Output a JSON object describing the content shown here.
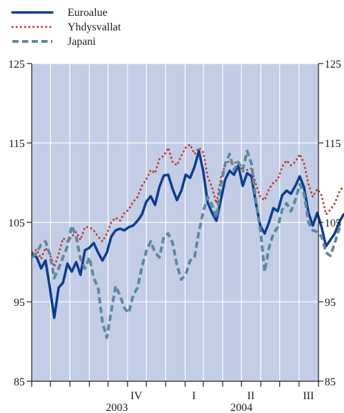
{
  "chart_data": {
    "type": "line",
    "title": "",
    "xlabel": "",
    "ylabel": "",
    "ylim": [
      85,
      125
    ],
    "yticks": [
      85,
      95,
      105,
      115,
      125
    ],
    "ytick_labels": [
      "85",
      "95",
      "105",
      "115",
      "125"
    ],
    "y_axis_both_sides": true,
    "grid": true,
    "legend_placement": "top-left",
    "x_start": "2003-06",
    "x_end": "2004-09",
    "x_month_ticks": [
      "2003-06",
      "2003-07",
      "2003-08",
      "2003-09",
      "2003-10",
      "2003-11",
      "2003-12",
      "2004-01",
      "2004-02",
      "2004-03",
      "2004-04",
      "2004-05",
      "2004-06",
      "2004-07",
      "2004-08",
      "2004-09"
    ],
    "x_quarter_labels": [
      {
        "text": "IV",
        "center": "2003-11-15"
      },
      {
        "text": "I",
        "center": "2004-02-15"
      },
      {
        "text": "II",
        "center": "2004-05-16"
      },
      {
        "text": "III",
        "center": "2004-08-16"
      }
    ],
    "x_year_labels": [
      {
        "text": "2003",
        "center": "2003-10-15"
      },
      {
        "text": "2004",
        "center": "2004-05-01"
      }
    ],
    "colors": {
      "background": "#c3cde6",
      "grid": "#ffffff",
      "axis": "#1a1a1a",
      "text": "#1a1a1a"
    },
    "series": [
      {
        "name": "Euroalue",
        "style": "solid",
        "color": "#0a3d91",
        "points": [
          [
            "2003-06-02",
            101.0
          ],
          [
            "2003-06-09",
            100.6
          ],
          [
            "2003-06-16",
            99.2
          ],
          [
            "2003-06-23",
            100.2
          ],
          [
            "2003-06-30",
            96.8
          ],
          [
            "2003-07-07",
            93.0
          ],
          [
            "2003-07-14",
            96.8
          ],
          [
            "2003-07-21",
            97.4
          ],
          [
            "2003-07-28",
            99.8
          ],
          [
            "2003-08-04",
            98.8
          ],
          [
            "2003-08-11",
            100.0
          ],
          [
            "2003-08-18",
            98.4
          ],
          [
            "2003-08-25",
            101.5
          ],
          [
            "2003-09-01",
            101.8
          ],
          [
            "2003-09-08",
            102.4
          ],
          [
            "2003-09-15",
            101.2
          ],
          [
            "2003-09-22",
            100.2
          ],
          [
            "2003-09-29",
            101.2
          ],
          [
            "2003-10-06",
            103.2
          ],
          [
            "2003-10-13",
            104.0
          ],
          [
            "2003-10-20",
            104.2
          ],
          [
            "2003-10-27",
            104.0
          ],
          [
            "2003-11-03",
            104.4
          ],
          [
            "2003-11-10",
            104.6
          ],
          [
            "2003-11-17",
            105.2
          ],
          [
            "2003-11-24",
            106.0
          ],
          [
            "2003-12-01",
            107.6
          ],
          [
            "2003-12-08",
            108.3
          ],
          [
            "2003-12-15",
            107.2
          ],
          [
            "2003-12-22",
            109.5
          ],
          [
            "2003-12-29",
            110.9
          ],
          [
            "2004-01-05",
            111.0
          ],
          [
            "2004-01-12",
            109.2
          ],
          [
            "2004-01-19",
            107.8
          ],
          [
            "2004-01-26",
            109.0
          ],
          [
            "2004-02-02",
            111.0
          ],
          [
            "2004-02-09",
            110.6
          ],
          [
            "2004-02-16",
            112.0
          ],
          [
            "2004-02-23",
            114.0
          ],
          [
            "2004-03-01",
            111.4
          ],
          [
            "2004-03-08",
            107.5
          ],
          [
            "2004-03-15",
            106.2
          ],
          [
            "2004-03-22",
            105.2
          ],
          [
            "2004-03-29",
            107.8
          ],
          [
            "2004-04-05",
            110.4
          ],
          [
            "2004-04-12",
            111.5
          ],
          [
            "2004-04-19",
            111.0
          ],
          [
            "2004-04-26",
            112.2
          ],
          [
            "2004-05-03",
            109.6
          ],
          [
            "2004-05-10",
            111.2
          ],
          [
            "2004-05-17",
            110.8
          ],
          [
            "2004-05-24",
            107.4
          ],
          [
            "2004-05-31",
            104.6
          ],
          [
            "2004-06-07",
            103.6
          ],
          [
            "2004-06-14",
            105.0
          ],
          [
            "2004-06-21",
            106.8
          ],
          [
            "2004-06-28",
            106.4
          ],
          [
            "2004-07-05",
            108.4
          ],
          [
            "2004-07-12",
            109.0
          ],
          [
            "2004-07-19",
            108.6
          ],
          [
            "2004-07-26",
            109.6
          ],
          [
            "2004-08-02",
            110.8
          ],
          [
            "2004-08-09",
            109.4
          ],
          [
            "2004-08-16",
            106.2
          ],
          [
            "2004-08-23",
            104.6
          ],
          [
            "2004-08-30",
            106.2
          ],
          [
            "2004-09-06",
            104.4
          ],
          [
            "2004-09-13",
            102.0
          ],
          [
            "2004-09-20",
            102.8
          ],
          [
            "2004-09-27",
            103.6
          ],
          [
            "2004-10-04",
            105.0
          ],
          [
            "2004-10-11",
            106.0
          ]
        ]
      },
      {
        "name": "Yhdysvallat",
        "style": "dotted",
        "color": "#c0392b",
        "points": [
          [
            "2003-06-02",
            101.2
          ],
          [
            "2003-06-09",
            101.6
          ],
          [
            "2003-06-16",
            100.4
          ],
          [
            "2003-06-23",
            101.8
          ],
          [
            "2003-06-30",
            101.0
          ],
          [
            "2003-07-07",
            99.4
          ],
          [
            "2003-07-14",
            101.0
          ],
          [
            "2003-07-21",
            103.0
          ],
          [
            "2003-07-28",
            102.6
          ],
          [
            "2003-08-04",
            103.2
          ],
          [
            "2003-08-11",
            103.8
          ],
          [
            "2003-08-18",
            102.8
          ],
          [
            "2003-08-25",
            104.4
          ],
          [
            "2003-09-01",
            104.4
          ],
          [
            "2003-09-08",
            104.0
          ],
          [
            "2003-09-15",
            103.2
          ],
          [
            "2003-09-22",
            102.6
          ],
          [
            "2003-09-29",
            103.6
          ],
          [
            "2003-10-06",
            105.0
          ],
          [
            "2003-10-13",
            105.6
          ],
          [
            "2003-10-20",
            105.2
          ],
          [
            "2003-10-27",
            106.2
          ],
          [
            "2003-11-03",
            106.6
          ],
          [
            "2003-11-10",
            107.6
          ],
          [
            "2003-11-17",
            108.2
          ],
          [
            "2003-11-24",
            109.6
          ],
          [
            "2003-12-01",
            110.4
          ],
          [
            "2003-12-08",
            111.6
          ],
          [
            "2003-12-15",
            111.2
          ],
          [
            "2003-12-22",
            113.0
          ],
          [
            "2003-12-29",
            113.4
          ],
          [
            "2004-01-05",
            114.4
          ],
          [
            "2004-01-12",
            112.6
          ],
          [
            "2004-01-19",
            112.2
          ],
          [
            "2004-01-26",
            113.4
          ],
          [
            "2004-02-02",
            114.4
          ],
          [
            "2004-02-09",
            114.8
          ],
          [
            "2004-02-16",
            113.6
          ],
          [
            "2004-02-23",
            114.4
          ],
          [
            "2004-03-01",
            113.8
          ],
          [
            "2004-03-08",
            110.8
          ],
          [
            "2004-03-15",
            109.4
          ],
          [
            "2004-03-22",
            107.4
          ],
          [
            "2004-03-29",
            110.6
          ],
          [
            "2004-04-05",
            112.2
          ],
          [
            "2004-04-12",
            112.8
          ],
          [
            "2004-04-19",
            112.6
          ],
          [
            "2004-04-26",
            112.4
          ],
          [
            "2004-05-03",
            111.4
          ],
          [
            "2004-05-10",
            111.6
          ],
          [
            "2004-05-17",
            111.8
          ],
          [
            "2004-05-24",
            109.8
          ],
          [
            "2004-05-31",
            108.2
          ],
          [
            "2004-06-07",
            107.8
          ],
          [
            "2004-06-14",
            109.2
          ],
          [
            "2004-06-21",
            110.0
          ],
          [
            "2004-06-28",
            110.4
          ],
          [
            "2004-07-05",
            112.0
          ],
          [
            "2004-07-12",
            112.8
          ],
          [
            "2004-07-19",
            112.2
          ],
          [
            "2004-07-26",
            112.6
          ],
          [
            "2004-08-02",
            113.6
          ],
          [
            "2004-08-09",
            112.4
          ],
          [
            "2004-08-16",
            109.8
          ],
          [
            "2004-08-23",
            108.2
          ],
          [
            "2004-08-30",
            109.2
          ],
          [
            "2004-09-06",
            108.4
          ],
          [
            "2004-09-13",
            106.0
          ],
          [
            "2004-09-20",
            106.6
          ],
          [
            "2004-09-27",
            107.4
          ],
          [
            "2004-10-04",
            108.8
          ],
          [
            "2004-10-11",
            109.6
          ]
        ]
      },
      {
        "name": "Japani",
        "style": "dashed",
        "color": "#5a8a9e",
        "points": [
          [
            "2003-06-02",
            100.6
          ],
          [
            "2003-06-09",
            101.2
          ],
          [
            "2003-06-16",
            102.2
          ],
          [
            "2003-06-23",
            102.6
          ],
          [
            "2003-06-30",
            101.0
          ],
          [
            "2003-07-07",
            98.0
          ],
          [
            "2003-07-14",
            99.2
          ],
          [
            "2003-07-21",
            100.6
          ],
          [
            "2003-07-28",
            102.0
          ],
          [
            "2003-08-04",
            104.6
          ],
          [
            "2003-08-11",
            103.2
          ],
          [
            "2003-08-18",
            100.4
          ],
          [
            "2003-08-25",
            99.2
          ],
          [
            "2003-09-01",
            100.6
          ],
          [
            "2003-09-08",
            98.0
          ],
          [
            "2003-09-15",
            96.8
          ],
          [
            "2003-09-22",
            92.4
          ],
          [
            "2003-09-29",
            90.5
          ],
          [
            "2003-10-06",
            93.8
          ],
          [
            "2003-10-13",
            97.0
          ],
          [
            "2003-10-20",
            95.8
          ],
          [
            "2003-10-27",
            94.2
          ],
          [
            "2003-11-03",
            93.6
          ],
          [
            "2003-11-10",
            95.8
          ],
          [
            "2003-11-17",
            96.8
          ],
          [
            "2003-11-24",
            99.4
          ],
          [
            "2003-12-01",
            101.4
          ],
          [
            "2003-12-08",
            102.6
          ],
          [
            "2003-12-15",
            101.2
          ],
          [
            "2003-12-22",
            100.6
          ],
          [
            "2003-12-29",
            103.2
          ],
          [
            "2004-01-05",
            103.6
          ],
          [
            "2004-01-12",
            102.4
          ],
          [
            "2004-01-19",
            99.6
          ],
          [
            "2004-01-26",
            97.8
          ],
          [
            "2004-02-02",
            98.4
          ],
          [
            "2004-02-09",
            100.2
          ],
          [
            "2004-02-16",
            100.6
          ],
          [
            "2004-02-23",
            103.8
          ],
          [
            "2004-03-01",
            106.4
          ],
          [
            "2004-03-08",
            108.2
          ],
          [
            "2004-03-15",
            107.2
          ],
          [
            "2004-03-22",
            105.6
          ],
          [
            "2004-03-29",
            109.6
          ],
          [
            "2004-04-05",
            112.4
          ],
          [
            "2004-04-12",
            113.6
          ],
          [
            "2004-04-19",
            111.6
          ],
          [
            "2004-04-26",
            112.6
          ],
          [
            "2004-05-03",
            111.6
          ],
          [
            "2004-05-10",
            114.0
          ],
          [
            "2004-05-17",
            112.4
          ],
          [
            "2004-05-24",
            107.6
          ],
          [
            "2004-05-31",
            104.2
          ],
          [
            "2004-06-07",
            98.8
          ],
          [
            "2004-06-14",
            101.8
          ],
          [
            "2004-06-21",
            103.6
          ],
          [
            "2004-06-28",
            104.4
          ],
          [
            "2004-07-05",
            106.6
          ],
          [
            "2004-07-12",
            107.4
          ],
          [
            "2004-07-19",
            106.4
          ],
          [
            "2004-07-26",
            107.8
          ],
          [
            "2004-08-02",
            109.8
          ],
          [
            "2004-08-09",
            108.6
          ],
          [
            "2004-08-16",
            105.0
          ],
          [
            "2004-08-23",
            104.0
          ],
          [
            "2004-08-30",
            103.8
          ],
          [
            "2004-09-06",
            103.2
          ],
          [
            "2004-09-13",
            101.2
          ],
          [
            "2004-09-20",
            100.8
          ],
          [
            "2004-09-27",
            102.4
          ],
          [
            "2004-10-04",
            104.2
          ],
          [
            "2004-10-11",
            104.4
          ]
        ]
      }
    ]
  }
}
